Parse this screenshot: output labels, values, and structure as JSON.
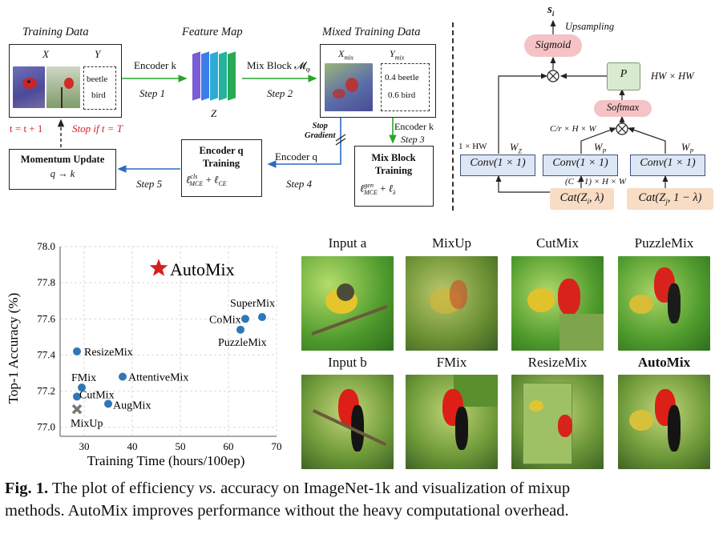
{
  "pipeline": {
    "training_data": {
      "title": "Training Data",
      "col_x": "X",
      "col_y": "Y",
      "labels": [
        "beetle",
        "bird"
      ]
    },
    "feature_map": {
      "title": "Feature Map",
      "z": "Z"
    },
    "mixed_data": {
      "title": "Mixed Training Data",
      "col_x": "X",
      "col_x_sub": "mix",
      "col_y": "Y",
      "col_y_sub": "mix",
      "labels": [
        "0.4 beetle",
        "0.6 bird"
      ]
    },
    "encoder_k": "Encoder k",
    "step1": "Step 1",
    "mix_block": "Mix Block 𝓜",
    "mix_block_sub": "φ",
    "step2": "Step 2",
    "t_update": "t = t + 1",
    "stop_if": "Stop if  t = T",
    "stop_gradient": [
      "Stop",
      "Gradient"
    ],
    "encoder_k_step3": "Encoder k",
    "step3": "Step 3",
    "mix_block_training": {
      "title": [
        "Mix Block",
        "Training"
      ],
      "loss": "ℓ",
      "loss_sup": "gen",
      "loss_sub": "MCE",
      "plus": "+",
      "loss2": "ℓ",
      "loss2_sub": "λ"
    },
    "encoder_q_training": {
      "title": [
        "Encoder q",
        "Training"
      ],
      "loss": "ℓ",
      "loss_sup": "cls",
      "loss_sub": "MCE",
      "plus": "+",
      "loss2": "ℓ",
      "loss2_sub": "CE"
    },
    "encoder_q": "Encoder q",
    "step4": "Step 4",
    "step5": "Step 5",
    "momentum": {
      "title": "Momentum Update",
      "formula": "q → k"
    }
  },
  "mixblock": {
    "s_i": "s",
    "s_i_sub": "i",
    "upsampling": "Upsampling",
    "sigmoid": "Sigmoid",
    "p": "P",
    "hwxhw": "HW × HW",
    "softmax": "Softmax",
    "dim_c": "C/r × H × W",
    "dim_1": "1 × HW",
    "wz": "W",
    "wz_sub": "Z",
    "wp": "W",
    "wp_sub": "P",
    "dim_c1": "(C + 1) × H × W",
    "conv": "Conv(1 × 1)",
    "cat_i": "Cat(Z",
    "cat_i_rest": ", λ)",
    "cat_i_sub": "i",
    "cat_j": "Cat(Z",
    "cat_j_rest": ", 1 − λ)",
    "cat_j_sub": "j"
  },
  "chart_data": {
    "type": "scatter",
    "xlabel": "Training Time (hours/100ep)",
    "ylabel": "Top-1 Accuracy (%)",
    "xlim": [
      25,
      70
    ],
    "ylim": [
      76.95,
      78.0
    ],
    "xticks": [
      30,
      40,
      50,
      60,
      70
    ],
    "yticks": [
      77.0,
      77.2,
      77.4,
      77.6,
      77.8,
      78.0
    ],
    "grid": true,
    "points": [
      {
        "label": "AutoMix",
        "x": 45.5,
        "y": 77.88,
        "marker": "star",
        "color": "#d42020"
      },
      {
        "label": "SuperMix",
        "x": 67,
        "y": 77.61,
        "marker": "circle",
        "color": "#2f77b8"
      },
      {
        "label": "CoMix",
        "x": 63.5,
        "y": 77.6,
        "marker": "circle",
        "color": "#2f77b8"
      },
      {
        "label": "PuzzleMix",
        "x": 62.5,
        "y": 77.54,
        "marker": "circle",
        "color": "#2f77b8"
      },
      {
        "label": "ResizeMix",
        "x": 28.5,
        "y": 77.42,
        "marker": "circle",
        "color": "#2f77b8"
      },
      {
        "label": "AttentiveMix",
        "x": 38,
        "y": 77.28,
        "marker": "circle",
        "color": "#2f77b8"
      },
      {
        "label": "FMix",
        "x": 29.5,
        "y": 77.22,
        "marker": "circle",
        "color": "#2f77b8"
      },
      {
        "label": "CutMix",
        "x": 28.5,
        "y": 77.17,
        "marker": "circle",
        "color": "#2f77b8"
      },
      {
        "label": "AugMix",
        "x": 35,
        "y": 77.13,
        "marker": "circle",
        "color": "#2f77b8"
      },
      {
        "label": "MixUp",
        "x": 28.5,
        "y": 77.1,
        "marker": "x",
        "color": "#777777"
      }
    ]
  },
  "gallery": {
    "labels": [
      "Input a",
      "MixUp",
      "CutMix",
      "PuzzleMix",
      "Input b",
      "FMix",
      "ResizeMix",
      "AutoMix"
    ]
  },
  "caption": {
    "fig": "Fig. 1.",
    "part1": "The plot of efficiency ",
    "vs": "vs.",
    "part2": " accuracy on ImageNet-1k and visualization of mixup",
    "line2": "methods. AutoMix improves performance without the heavy computational overhead."
  }
}
